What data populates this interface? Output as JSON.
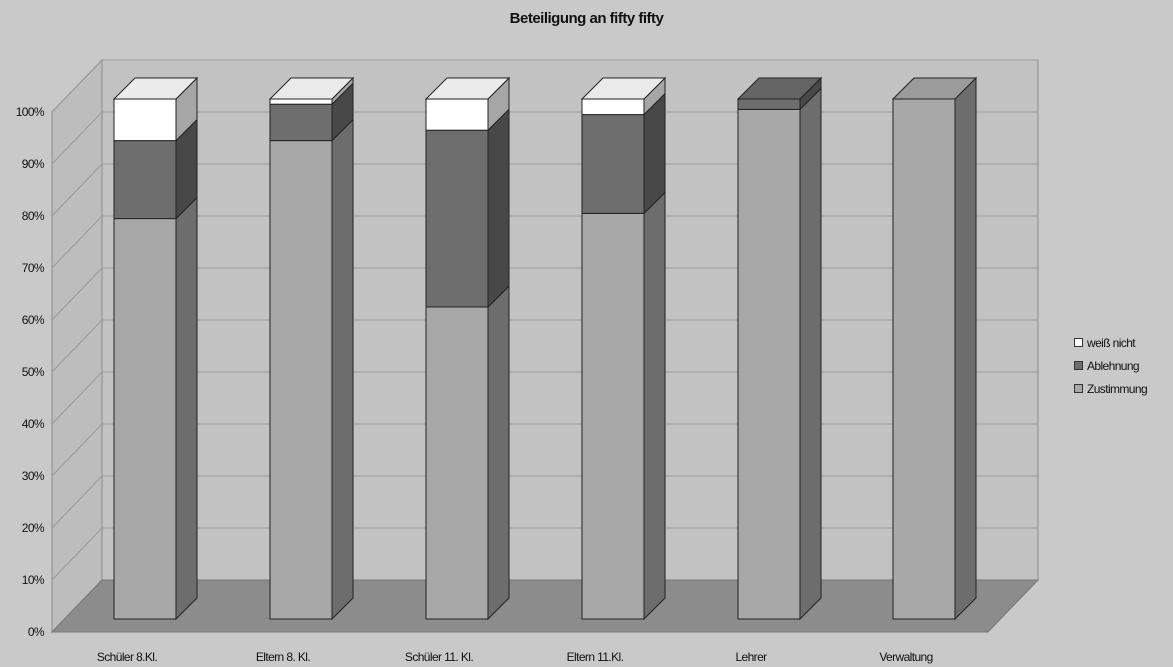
{
  "chart_data": {
    "type": "bar",
    "stacked": true,
    "three_d": true,
    "title": "Beteiligung an fifty fifty",
    "categories": [
      "Schüler 8.Kl.",
      "Eltern 8. Kl.",
      "Schüler 11. Kl.",
      "Eltern 11.Kl.",
      "Lehrer",
      "Verwaltung"
    ],
    "series": [
      {
        "name": "Zustimmung",
        "values": [
          77,
          92,
          60,
          78,
          98,
          100
        ],
        "color": "#a8a8a8"
      },
      {
        "name": "Ablehnung",
        "values": [
          15,
          7,
          34,
          19,
          2,
          0
        ],
        "color": "#6e6e6e"
      },
      {
        "name": "weiß nicht",
        "values": [
          8,
          1,
          6,
          3,
          0,
          0
        ],
        "color": "#ffffff"
      }
    ],
    "y_ticks": [
      "0%",
      "10%",
      "20%",
      "30%",
      "40%",
      "50%",
      "60%",
      "70%",
      "80%",
      "90%",
      "100%"
    ],
    "ylim": [
      0,
      100
    ],
    "grid": true,
    "legend_position": "right"
  }
}
